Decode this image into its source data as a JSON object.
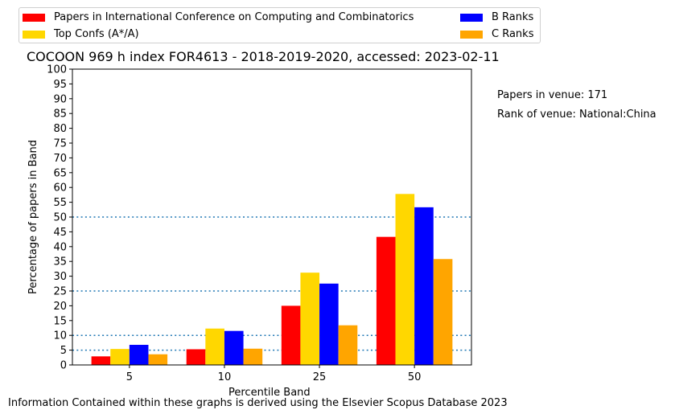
{
  "legend": {
    "items": [
      {
        "label": "Papers in International Conference on Computing and Combinatorics",
        "color": "#ff0000"
      },
      {
        "label": "Top Confs (A*/A)",
        "color": "#ffd700"
      },
      {
        "label": "B Ranks",
        "color": "#0000ff"
      },
      {
        "label": "C Ranks",
        "color": "#ffa500"
      }
    ]
  },
  "side_info": {
    "papers_in_venue": "Papers in venue: 171",
    "rank_of_venue": "Rank of venue: National:China"
  },
  "footer": "Information Contained within these graphs is derived using the Elsevier Scopus Database 2023",
  "chart_data": {
    "type": "bar",
    "title": "COCOON 969 h index FOR4613 - 2018-2019-2020, accessed: 2023-02-11",
    "xlabel": "Percentile Band",
    "ylabel": "Percentage of papers in Band",
    "categories": [
      "5",
      "10",
      "25",
      "50"
    ],
    "ylim": [
      0,
      100
    ],
    "yticks": [
      0,
      5,
      10,
      15,
      20,
      25,
      30,
      35,
      40,
      45,
      50,
      55,
      60,
      65,
      70,
      75,
      80,
      85,
      90,
      95,
      100
    ],
    "reference_lines": [
      5,
      10,
      25,
      50
    ],
    "reference_line_color": "#1f77b4",
    "series": [
      {
        "name": "Papers in International Conference on Computing and Combinatorics",
        "color": "#ff0000",
        "values": [
          2.9,
          5.3,
          20.0,
          43.3
        ]
      },
      {
        "name": "Top Confs (A*/A)",
        "color": "#ffd700",
        "values": [
          5.4,
          12.3,
          31.2,
          57.8
        ]
      },
      {
        "name": "B Ranks",
        "color": "#0000ff",
        "values": [
          6.8,
          11.5,
          27.5,
          53.3
        ]
      },
      {
        "name": "C Ranks",
        "color": "#ffa500",
        "values": [
          3.6,
          5.5,
          13.4,
          35.8
        ]
      }
    ]
  }
}
